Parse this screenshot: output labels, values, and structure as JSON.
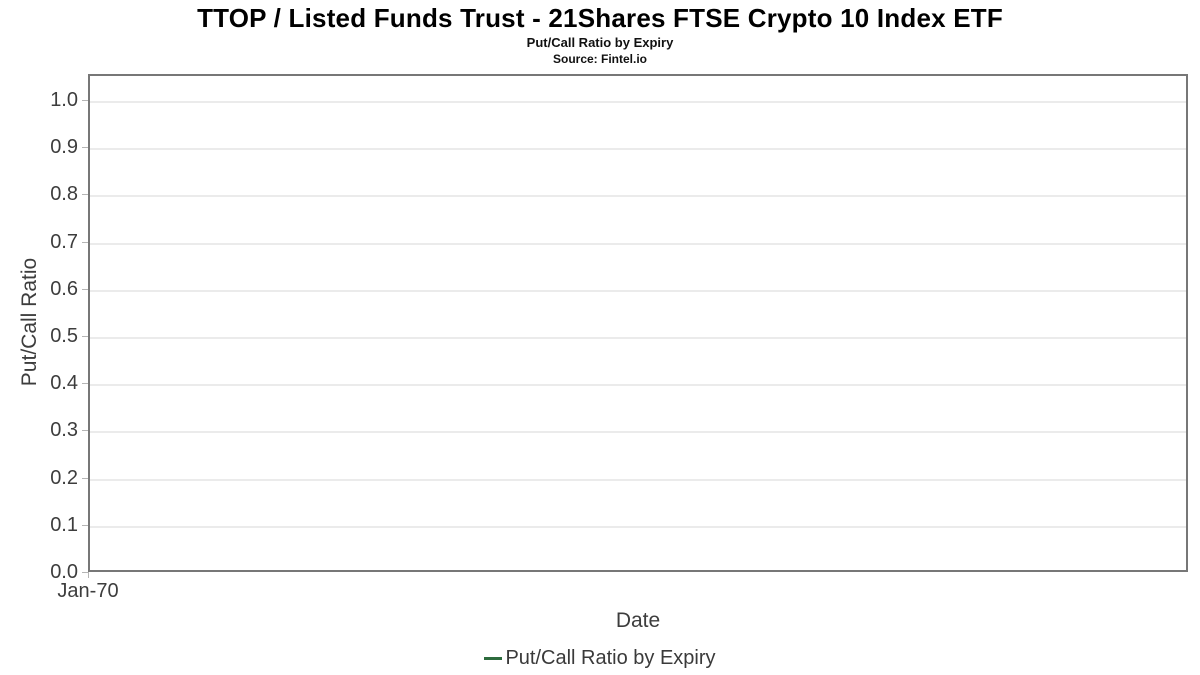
{
  "header": {
    "title": "TTOP / Listed Funds Trust - 21Shares FTSE Crypto 10 Index ETF",
    "subtitle": "Put/Call Ratio by Expiry",
    "source": "Source: Fintel.io"
  },
  "chart_data": {
    "type": "line",
    "title": "TTOP / Listed Funds Trust - 21Shares FTSE Crypto 10 Index ETF",
    "subtitle": "Put/Call Ratio by Expiry",
    "source": "Source: Fintel.io",
    "xlabel": "Date",
    "ylabel": "Put/Call Ratio",
    "x_ticks": [
      "Jan-70"
    ],
    "y_ticks": [
      "0.0",
      "0.1",
      "0.2",
      "0.3",
      "0.4",
      "0.5",
      "0.6",
      "0.7",
      "0.8",
      "0.9",
      "1.0"
    ],
    "ylim": [
      0,
      1.055
    ],
    "grid": true,
    "legend_position": "bottom",
    "series": [
      {
        "name": "Put/Call Ratio by Expiry",
        "color": "#2d6b3d",
        "x": [],
        "values": []
      }
    ],
    "note": "empty plot - no data points rendered"
  },
  "colors": {
    "plot_border": "#777777",
    "gridline": "#ebebeb",
    "tick_mark": "#b5b5b5",
    "tick_text": "#3d3d3d",
    "series_green": "#2d6b3d",
    "background": "#ffffff"
  }
}
